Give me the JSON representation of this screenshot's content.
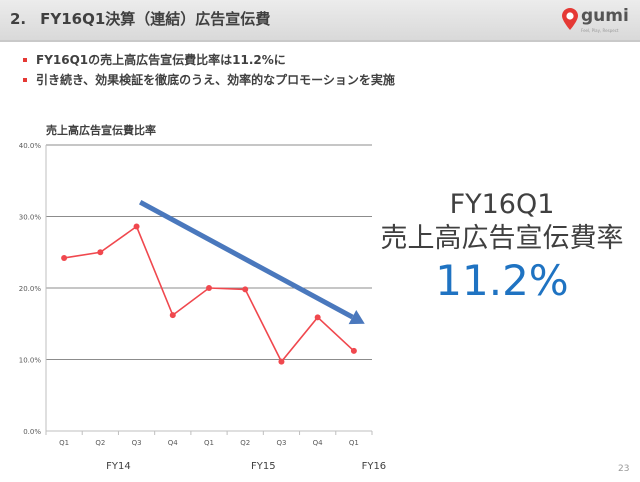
{
  "header": {
    "number": "2.",
    "title": "FY16Q1決算（連結）広告宣伝費"
  },
  "logo": {
    "name": "gumi",
    "tagline": "Feel, Play, Respect"
  },
  "bullets": [
    "FY16Q1の売上高広告宣伝費比率は11.2%に",
    "引き続き、効果検証を徹底のうえ、効率的なプロモーションを実施"
  ],
  "callout": {
    "line1": "FY16Q1",
    "line2": "売上高広告宣伝費率",
    "value": "11.2%"
  },
  "page_number": "23",
  "colors": {
    "line": "#f0484e",
    "trend_arrow": "#4a78bd",
    "value": "#1f73c2",
    "bullet": "#e53935"
  },
  "chart_data": {
    "type": "line",
    "title": "売上高広告宣伝費比率",
    "categories": [
      "Q1",
      "Q2",
      "Q3",
      "Q4",
      "Q1",
      "Q2",
      "Q3",
      "Q4",
      "Q1"
    ],
    "fiscal_years": [
      {
        "label": "FY14",
        "from": 0,
        "to": 3
      },
      {
        "label": "FY15",
        "from": 4,
        "to": 7
      },
      {
        "label": "FY16",
        "from": 8,
        "to": 8
      }
    ],
    "values": [
      24.2,
      25.0,
      28.6,
      16.2,
      20.0,
      19.8,
      9.7,
      15.9,
      11.2
    ],
    "ylim": [
      0,
      40
    ],
    "yticks": [
      0,
      10,
      20,
      30,
      40
    ],
    "ytick_labels": [
      "0.0%",
      "10.0%",
      "20.0%",
      "30.0%",
      "40.0%"
    ],
    "grid": true,
    "trend_arrow": {
      "from": [
        2.1,
        32
      ],
      "to": [
        8.3,
        15
      ]
    }
  }
}
